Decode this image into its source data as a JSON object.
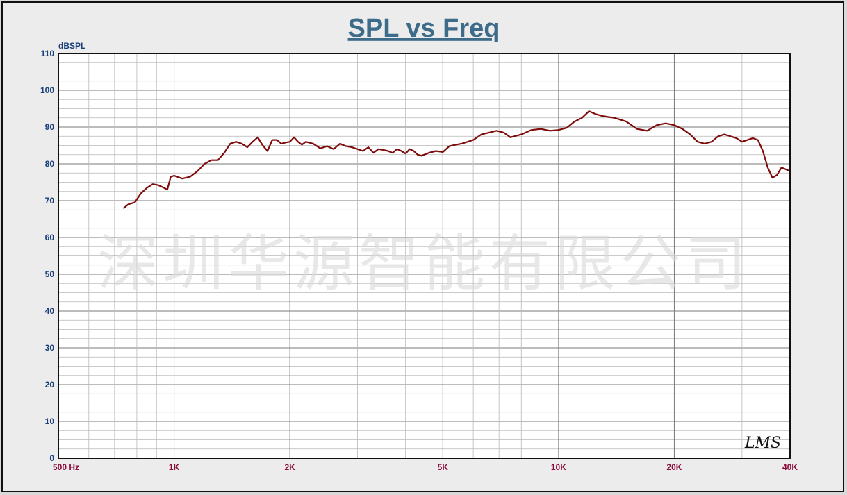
{
  "watermark": "深圳华源智能有限公司",
  "signature": "LMS",
  "colors": {
    "title": "#3d6b8a",
    "yaxis_label": "#1a3f7a",
    "xaxis_label": "#8b0a3c",
    "curve": "#7f0a0a",
    "grid_major": "#7a7a7a",
    "grid_minor": "#b8b8b8"
  },
  "chart_data": {
    "type": "line",
    "title": "SPL vs Freq",
    "ylabel": "dBSPL",
    "xlabel": "",
    "xscale": "log",
    "xlim": [
      500,
      40000
    ],
    "ylim": [
      0,
      110
    ],
    "grid": true,
    "yticks": [
      0,
      10,
      20,
      30,
      40,
      50,
      60,
      70,
      80,
      90,
      100,
      110
    ],
    "xticks": [
      {
        "value": 500,
        "label": "500  Hz"
      },
      {
        "value": 1000,
        "label": "1K"
      },
      {
        "value": 2000,
        "label": "2K"
      },
      {
        "value": 5000,
        "label": "5K"
      },
      {
        "value": 10000,
        "label": "10K"
      },
      {
        "value": 20000,
        "label": "20K"
      },
      {
        "value": 40000,
        "label": "40K"
      }
    ],
    "series": [
      {
        "x": [
          740,
          760,
          790,
          820,
          850,
          880,
          910,
          940,
          960,
          980,
          1000,
          1050,
          1100,
          1150,
          1200,
          1250,
          1300,
          1350,
          1400,
          1450,
          1500,
          1550,
          1600,
          1650,
          1700,
          1750,
          1800,
          1850,
          1900,
          1950,
          2000,
          2050,
          2100,
          2150,
          2200,
          2300,
          2400,
          2500,
          2600,
          2700,
          2800,
          2900,
          3000,
          3100,
          3200,
          3300,
          3400,
          3500,
          3600,
          3700,
          3800,
          3900,
          4000,
          4100,
          4200,
          4300,
          4400,
          4600,
          4800,
          5000,
          5200,
          5400,
          5600,
          5800,
          6000,
          6300,
          6600,
          6900,
          7200,
          7500,
          8000,
          8500,
          9000,
          9500,
          10000,
          10500,
          11000,
          11500,
          12000,
          12500,
          13000,
          14000,
          15000,
          16000,
          17000,
          18000,
          19000,
          20000,
          21000,
          22000,
          23000,
          24000,
          25000,
          26000,
          27000,
          28000,
          29000,
          30000,
          31000,
          32000,
          33000,
          34000,
          35000,
          36000,
          37000,
          38000,
          39000,
          40000
        ],
        "y": [
          68,
          69,
          69.5,
          72,
          73.5,
          74.5,
          74.2,
          73.5,
          73,
          76.5,
          76.8,
          76,
          76.5,
          78,
          80,
          81,
          81,
          83,
          85.5,
          86,
          85.5,
          84.5,
          86,
          87.2,
          85,
          83.5,
          86.5,
          86.5,
          85.5,
          85.8,
          86,
          87.2,
          86,
          85.2,
          86,
          85.5,
          84.2,
          84.8,
          84,
          85.5,
          84.8,
          84.5,
          84,
          83.5,
          84.5,
          83,
          84,
          83.8,
          83.5,
          83,
          84,
          83.5,
          82.8,
          84,
          83.5,
          82.5,
          82.2,
          83,
          83.5,
          83.2,
          84.8,
          85.2,
          85.5,
          86,
          86.5,
          88,
          88.5,
          89,
          88.5,
          87.2,
          88,
          89.2,
          89.5,
          89,
          89.2,
          89.8,
          91.5,
          92.5,
          94.3,
          93.5,
          93,
          92.5,
          91.5,
          89.5,
          89,
          90.5,
          91,
          90.5,
          89.5,
          88,
          86,
          85.5,
          86,
          87.5,
          88,
          87.5,
          87,
          86,
          86.5,
          87,
          86.5,
          83.5,
          79,
          76.2,
          77,
          79,
          78.5,
          78
        ]
      }
    ]
  }
}
